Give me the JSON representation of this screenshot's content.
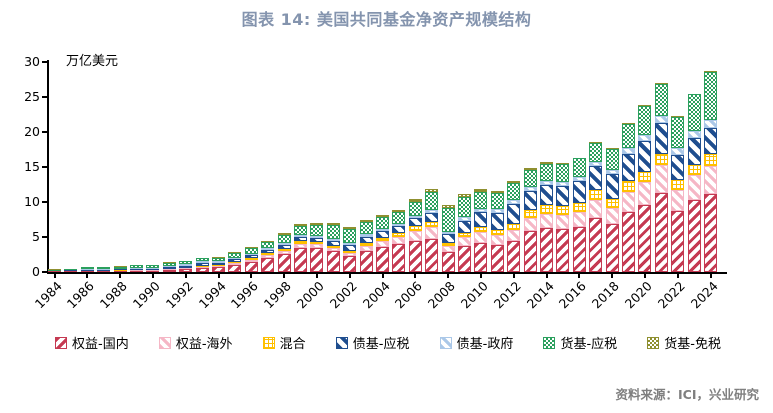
{
  "title": "图表 14: 美国共同基金净资产规模结构",
  "source": "资料来源：ICI，兴业研究",
  "chart_data": {
    "type": "bar",
    "subtype": "stacked",
    "title": "图表 14: 美国共同基金净资产规模结构",
    "unit_label": "万亿美元",
    "xlabel": "",
    "ylabel": "万亿美元",
    "ylim": [
      0,
      30
    ],
    "y_ticks": [
      0,
      5,
      10,
      15,
      20,
      25,
      30
    ],
    "grid": false,
    "legend_position": "bottom",
    "x_tick_label_rotation": -45,
    "categories": [
      1984,
      1985,
      1986,
      1987,
      1988,
      1989,
      1990,
      1991,
      1992,
      1993,
      1994,
      1995,
      1996,
      1997,
      1998,
      1999,
      2000,
      2001,
      2002,
      2003,
      2004,
      2005,
      2006,
      2007,
      2008,
      2009,
      2010,
      2011,
      2012,
      2013,
      2014,
      2015,
      2016,
      2017,
      2018,
      2019,
      2020,
      2021,
      2022,
      2023,
      2024
    ],
    "x_tick_labels": [
      "1984",
      "1986",
      "1988",
      "1990",
      "1992",
      "1994",
      "1996",
      "1998",
      "2000",
      "2002",
      "2004",
      "2006",
      "2008",
      "2010",
      "2012",
      "2014",
      "2016",
      "2018",
      "2020",
      "2022",
      "2024"
    ],
    "series": [
      {
        "name": "权益-国内",
        "pattern_key": "equity-dom",
        "pattern": "diagonal-down-hatch",
        "color": "#c53a52",
        "values": [
          0.07,
          0.1,
          0.13,
          0.14,
          0.15,
          0.2,
          0.19,
          0.32,
          0.41,
          0.58,
          0.67,
          1.04,
          1.42,
          1.99,
          2.51,
          3.46,
          3.37,
          2.93,
          2.23,
          3.05,
          3.59,
          3.94,
          4.48,
          4.77,
          2.87,
          3.72,
          4.17,
          3.87,
          4.44,
          5.85,
          6.3,
          6.1,
          6.46,
          7.64,
          6.86,
          8.55,
          9.58,
          11.35,
          8.75,
          10.23,
          11.2
        ]
      },
      {
        "name": "权益-海外",
        "pattern_key": "equity-intl",
        "pattern": "diagonal-up-hatch-light",
        "color": "#f5b7c6",
        "values": [
          0.01,
          0.02,
          0.03,
          0.04,
          0.04,
          0.05,
          0.05,
          0.08,
          0.1,
          0.16,
          0.19,
          0.21,
          0.31,
          0.38,
          0.47,
          0.58,
          0.59,
          0.49,
          0.43,
          0.63,
          0.79,
          1.0,
          1.43,
          1.65,
          0.84,
          1.24,
          1.5,
          1.35,
          1.5,
          1.91,
          2.01,
          2.05,
          2.11,
          2.63,
          2.34,
          2.92,
          3.21,
          3.86,
          3.0,
          3.6,
          4.0
        ]
      },
      {
        "name": "混合",
        "pattern_key": "hybrid",
        "pattern": "grid",
        "color": "#ffc000",
        "values": [
          0.01,
          0.01,
          0.02,
          0.02,
          0.02,
          0.03,
          0.04,
          0.05,
          0.08,
          0.14,
          0.16,
          0.21,
          0.25,
          0.32,
          0.36,
          0.38,
          0.35,
          0.35,
          0.33,
          0.44,
          0.52,
          0.57,
          0.65,
          0.71,
          0.5,
          0.64,
          0.74,
          0.78,
          0.92,
          1.15,
          1.28,
          1.34,
          1.33,
          1.41,
          1.28,
          1.46,
          1.56,
          1.71,
          1.43,
          1.48,
          1.7
        ]
      },
      {
        "name": "债基-应税",
        "pattern_key": "bond-tax",
        "pattern": "diagonal-up-hatch-bold",
        "color": "#1f4e8f",
        "values": [
          0.03,
          0.08,
          0.15,
          0.15,
          0.15,
          0.16,
          0.17,
          0.24,
          0.31,
          0.38,
          0.33,
          0.38,
          0.41,
          0.47,
          0.56,
          0.55,
          0.56,
          0.67,
          0.83,
          0.92,
          0.96,
          1.02,
          1.12,
          1.29,
          1.19,
          1.75,
          2.13,
          2.44,
          2.89,
          2.72,
          2.87,
          2.84,
          3.11,
          3.42,
          3.47,
          3.95,
          4.3,
          4.4,
          3.6,
          3.8,
          3.6
        ]
      },
      {
        "name": "债基-政府",
        "pattern_key": "bond-gov",
        "pattern": "diagonal-up-hatch-light",
        "color": "#abc8e8",
        "values": [
          0.02,
          0.04,
          0.09,
          0.1,
          0.1,
          0.11,
          0.12,
          0.15,
          0.19,
          0.24,
          0.2,
          0.22,
          0.23,
          0.25,
          0.27,
          0.26,
          0.25,
          0.26,
          0.3,
          0.32,
          0.33,
          0.34,
          0.37,
          0.39,
          0.38,
          0.46,
          0.48,
          0.5,
          0.53,
          0.52,
          0.52,
          0.56,
          0.61,
          0.65,
          0.67,
          0.8,
          0.9,
          0.95,
          0.9,
          1.0,
          1.15
        ]
      },
      {
        "name": "货基-应税",
        "pattern_key": "mmf-tax",
        "pattern": "checker",
        "color": "#2ba05e",
        "values": [
          0.21,
          0.22,
          0.26,
          0.28,
          0.3,
          0.39,
          0.41,
          0.45,
          0.45,
          0.46,
          0.5,
          0.63,
          0.76,
          0.9,
          1.16,
          1.41,
          1.61,
          2.02,
          2.0,
          1.76,
          1.6,
          1.69,
          1.99,
          2.62,
          3.34,
          2.92,
          2.47,
          2.4,
          2.43,
          2.46,
          2.47,
          2.5,
          2.6,
          2.72,
          2.91,
          3.49,
          4.22,
          4.6,
          4.45,
          5.27,
          6.9
        ]
      },
      {
        "name": "货基-免税",
        "pattern_key": "mmf-exempt",
        "pattern": "checker",
        "color": "#8f9030",
        "values": [
          0.02,
          0.02,
          0.03,
          0.04,
          0.04,
          0.04,
          0.08,
          0.09,
          0.09,
          0.1,
          0.11,
          0.12,
          0.14,
          0.16,
          0.19,
          0.2,
          0.24,
          0.27,
          0.27,
          0.29,
          0.3,
          0.34,
          0.35,
          0.47,
          0.49,
          0.4,
          0.33,
          0.29,
          0.27,
          0.26,
          0.25,
          0.25,
          0.13,
          0.13,
          0.13,
          0.14,
          0.11,
          0.11,
          0.1,
          0.12,
          0.15
        ]
      }
    ]
  }
}
